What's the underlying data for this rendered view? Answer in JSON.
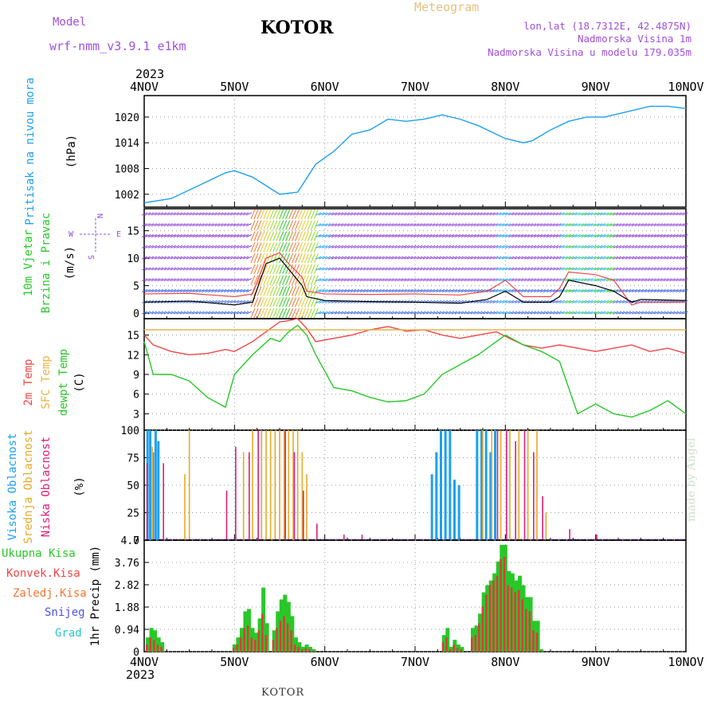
{
  "header": {
    "model_label": "Model",
    "model_name": "wrf-nmm_v3.9.1 e1km",
    "title": "KOTOR",
    "meteogram": "Meteogram",
    "lonlat": "lon,lat (18.7312E, 42.4875N)",
    "elevation": "Nadmorska Visina 1m",
    "model_elevation": "Nadmorska Visina u modelu 179.035m",
    "year_top": "2023",
    "year_bottom": "2023",
    "footer_name": "KOTOR",
    "credit": "made by Angel"
  },
  "colors": {
    "pressure": "#1ea0f0",
    "temp2m": "#f04646",
    "sfc": "#e6b446",
    "dewpt": "#28c828",
    "high": "#1ea0f0",
    "mid": "#e6aa28",
    "low": "#dc1e78",
    "purple": "#9650dc",
    "precip_total": "#28c828",
    "precip_conv": "#dc3c3c"
  },
  "chart_data": [
    {
      "type": "line",
      "panel": "pressure",
      "ylabel": [
        "Pritisak na nivou mora",
        "(hPa)"
      ],
      "yticks": [
        1002,
        1008,
        1014,
        1020
      ],
      "ylim": [
        999,
        1025
      ],
      "x_categories": [
        "4NOV",
        "5NOV",
        "6NOV",
        "7NOV",
        "8NOV",
        "9NOV",
        "10NOV"
      ],
      "x": [
        0,
        0.3,
        0.6,
        0.9,
        1.0,
        1.2,
        1.5,
        1.7,
        1.9,
        2.1,
        2.3,
        2.5,
        2.7,
        2.9,
        3.1,
        3.3,
        3.5,
        3.7,
        3.9,
        4.0,
        4.2,
        4.3,
        4.5,
        4.7,
        4.9,
        5.1,
        5.3,
        5.6,
        5.8,
        6.0
      ],
      "y": [
        1000,
        1001,
        1004,
        1007,
        1007.5,
        1006,
        1002,
        1002.5,
        1009,
        1012,
        1016,
        1017,
        1019.5,
        1019,
        1019.5,
        1020.5,
        1019.5,
        1018,
        1016,
        1015,
        1014,
        1014.5,
        1017,
        1019,
        1020,
        1020,
        1021,
        1022.5,
        1022.5,
        1022
      ]
    },
    {
      "type": "line",
      "panel": "wind",
      "ylabel": [
        "10m Vjetar",
        "Brzina i Pravac",
        "(m/s)"
      ],
      "compass": [
        "N",
        "S",
        "E",
        "W"
      ],
      "yticks": [
        0,
        5,
        10,
        15
      ],
      "ylim": [
        -1,
        19
      ],
      "x": [
        0,
        0.5,
        1.0,
        1.2,
        1.35,
        1.5,
        1.6,
        1.75,
        1.8,
        2.0,
        2.5,
        3.0,
        3.5,
        3.8,
        4.0,
        4.2,
        4.5,
        4.6,
        4.7,
        5.0,
        5.2,
        5.4,
        5.5,
        6.0
      ],
      "y": [
        2,
        2.2,
        1.5,
        2,
        9,
        10,
        8,
        5,
        3,
        2.3,
        2.1,
        2,
        1.8,
        2.5,
        4,
        2,
        2,
        3,
        6,
        5,
        4,
        2,
        2.5,
        2.3
      ],
      "gust_x": [
        0,
        0.5,
        1.0,
        1.2,
        1.35,
        1.5,
        1.6,
        1.75,
        1.8,
        2.0,
        2.5,
        3.0,
        3.5,
        3.8,
        4.0,
        4.2,
        4.5,
        4.6,
        4.7,
        5.0,
        5.2,
        5.4,
        5.5,
        6.0
      ],
      "gust_y": [
        3.5,
        3.6,
        3.0,
        3.5,
        10,
        11,
        9,
        6.5,
        4,
        3.5,
        3.4,
        3.5,
        3.3,
        4,
        6,
        3,
        3,
        4.5,
        7.5,
        7,
        6,
        1.5,
        2,
        2
      ]
    },
    {
      "type": "line",
      "panel": "temperature",
      "ylabel": [
        "2m Temp",
        "SFC Temp",
        "dewpt Temp",
        "(C)"
      ],
      "yticks": [
        3,
        6,
        9,
        12,
        15
      ],
      "ylim": [
        0.5,
        17.5
      ],
      "x": [
        0,
        0.1,
        0.3,
        0.5,
        0.7,
        0.9,
        1.0,
        1.2,
        1.4,
        1.5,
        1.6,
        1.7,
        1.8,
        1.9,
        2.1,
        2.3,
        2.5,
        2.7,
        2.9,
        3.1,
        3.3,
        3.5,
        3.7,
        3.9,
        4.0,
        4.2,
        4.4,
        4.6,
        4.8,
        5.0,
        5.2,
        5.4,
        5.6,
        5.8,
        6.0
      ],
      "series": [
        {
          "key": "temp2m",
          "color": "#f04646",
          "values": [
            15,
            13.5,
            12.5,
            12,
            12.2,
            12.8,
            12.5,
            14,
            16,
            17,
            17.2,
            17.5,
            16,
            14,
            14.5,
            15,
            15.8,
            16.3,
            15.6,
            15.8,
            15,
            14.5,
            15,
            15.5,
            14.8,
            13.5,
            13,
            13.5,
            13,
            12.5,
            13,
            13.5,
            12.5,
            13,
            12.2
          ]
        },
        {
          "key": "sfc",
          "color": "#e6b446",
          "values": [
            15.8,
            15.8,
            15.8,
            15.8,
            15.8,
            15.8,
            15.8,
            15.8,
            15.8,
            15.8,
            15.8,
            15.8,
            15.8,
            15.8,
            15.8,
            15.8,
            15.8,
            15.8,
            15.8,
            15.8,
            15.8,
            15.8,
            15.8,
            15.8,
            15.8,
            15.8,
            15.8,
            15.8,
            15.8,
            15.8,
            15.8,
            15.8,
            15.8,
            15.8,
            15.8
          ]
        },
        {
          "key": "dewpt",
          "color": "#28c828",
          "values": [
            14,
            9,
            9,
            8,
            5.5,
            4,
            9,
            12,
            14.5,
            14,
            15.5,
            16.5,
            15,
            12,
            7,
            6.5,
            5.5,
            4.8,
            5,
            6,
            9,
            10.5,
            12,
            14,
            15,
            13.5,
            12.5,
            11,
            3,
            4.5,
            3,
            2.5,
            3.5,
            5,
            3
          ]
        }
      ]
    },
    {
      "type": "bar",
      "panel": "clouds",
      "ylabel": [
        "Visoka Oblacnost",
        "Srednja Oblacnost",
        "Niska Oblacnost",
        "(%)"
      ],
      "yticks": [
        0,
        25,
        50,
        75,
        100
      ],
      "ylim": [
        0,
        100
      ],
      "series": [
        {
          "key": "high",
          "color": "#1ea0f0",
          "x": [
            0.05,
            0.08,
            0.11,
            0.14,
            0.17,
            3.2,
            3.25,
            3.3,
            3.35,
            3.4,
            3.45,
            3.5,
            3.7,
            3.75,
            3.8,
            3.85,
            3.9
          ],
          "values": [
            100,
            100,
            80,
            100,
            90,
            60,
            80,
            100,
            100,
            100,
            55,
            50,
            100,
            100,
            100,
            80,
            100
          ]
        },
        {
          "key": "mid",
          "color": "#e6aa28",
          "x": [
            0.09,
            0.45,
            0.5,
            1.1,
            1.2,
            1.3,
            1.35,
            1.4,
            1.45,
            1.5,
            1.55,
            1.6,
            1.65,
            1.7,
            1.75,
            1.8,
            3.75,
            3.85,
            3.95,
            4.05,
            4.15,
            4.25,
            4.35,
            4.45
          ],
          "values": [
            85,
            60,
            100,
            80,
            100,
            100,
            100,
            100,
            100,
            100,
            100,
            100,
            100,
            100,
            80,
            60,
            100,
            100,
            100,
            100,
            100,
            100,
            100,
            25
          ]
        },
        {
          "key": "low",
          "color": "#dc1e78",
          "x": [
            0.02,
            0.2,
            0.9,
            1.0,
            1.15,
            1.25,
            1.55,
            1.65,
            1.75,
            1.9,
            2.2,
            2.4,
            3.9,
            4.0,
            4.1,
            4.2,
            4.3,
            4.4,
            4.7,
            5.0
          ],
          "values": [
            70,
            70,
            45,
            85,
            80,
            100,
            100,
            80,
            45,
            15,
            5,
            5,
            100,
            100,
            90,
            100,
            80,
            40,
            10,
            5
          ]
        }
      ]
    },
    {
      "type": "bar",
      "panel": "precipitation",
      "ylabel": [
        "1hr Precip (mm)"
      ],
      "legend": [
        "Ukupna Kisa",
        "Konvek.Kisa",
        "Zaledj.Kisa",
        "Snijeg",
        "Grad"
      ],
      "yticks": [
        0,
        0.94,
        1.88,
        2.82,
        3.76,
        4.7
      ],
      "ylim": [
        0,
        4.7
      ],
      "x_categories": [
        "4NOV",
        "5NOV",
        "6NOV",
        "7NOV",
        "8NOV",
        "9NOV",
        "10NOV"
      ],
      "x": [
        0.04,
        0.08,
        0.12,
        0.16,
        0.2,
        1.0,
        1.04,
        1.08,
        1.12,
        1.16,
        1.2,
        1.24,
        1.28,
        1.32,
        1.36,
        1.44,
        1.48,
        1.52,
        1.56,
        1.6,
        1.64,
        1.68,
        1.72,
        1.76,
        1.8,
        1.84,
        1.88,
        3.32,
        3.36,
        3.4,
        3.44,
        3.48,
        3.52,
        3.64,
        3.68,
        3.72,
        3.76,
        3.8,
        3.84,
        3.88,
        3.92,
        3.96,
        4.0,
        4.04,
        4.08,
        4.12,
        4.16,
        4.2,
        4.24,
        4.28,
        4.32,
        4.36,
        4.4
      ],
      "total": [
        0.6,
        1.0,
        0.9,
        0.6,
        0.4,
        0.3,
        0.6,
        1.0,
        1.7,
        1.8,
        1.0,
        0.8,
        1.4,
        2.7,
        1.2,
        0.9,
        1.7,
        2.2,
        2.4,
        2.1,
        1.5,
        0.6,
        0.4,
        0.2,
        0.3,
        0.2,
        0.1,
        0.7,
        1.0,
        0.2,
        0.5,
        0.3,
        0.2,
        1.0,
        1.1,
        1.6,
        2.5,
        2.8,
        3.0,
        3.3,
        3.8,
        4.5,
        4.5,
        3.4,
        3.3,
        3.0,
        3.2,
        2.8,
        2.3,
        2.3,
        1.3,
        1.3,
        0.1
      ],
      "convective": [
        0.3,
        0.6,
        0.5,
        0.3,
        0.2,
        0.15,
        0.3,
        0.6,
        1.0,
        1.1,
        0.6,
        0.5,
        0.9,
        1.6,
        0.7,
        0.5,
        1.0,
        1.3,
        1.5,
        1.2,
        0.9,
        0.3,
        0.2,
        0.1,
        0.15,
        0.1,
        0.05,
        0.4,
        0.6,
        0.1,
        0.3,
        0.15,
        0.1,
        0.6,
        0.7,
        1.2,
        1.9,
        2.4,
        2.8,
        3.0,
        3.2,
        3.9,
        4.0,
        2.8,
        2.7,
        2.5,
        2.6,
        2.2,
        1.8,
        1.7,
        0.9,
        0.8,
        0.05
      ]
    }
  ]
}
